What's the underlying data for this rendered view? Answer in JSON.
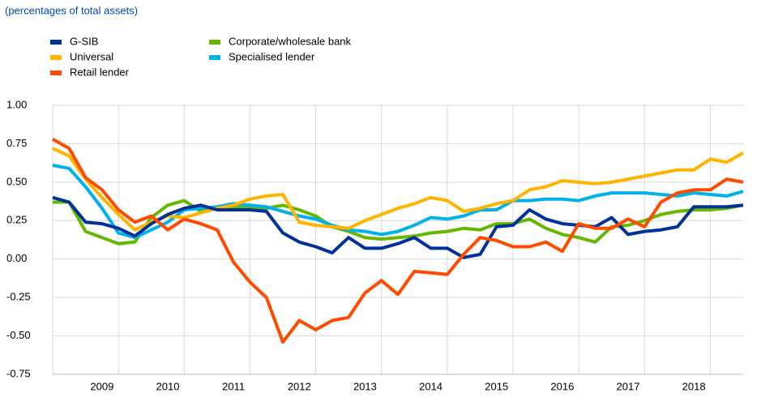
{
  "chart_data": {
    "type": "line",
    "subtitle": "(percentages of total assets)",
    "categories": [
      null,
      null,
      null,
      "2009",
      null,
      null,
      null,
      "2010",
      null,
      null,
      null,
      "2011",
      null,
      null,
      null,
      "2012",
      null,
      null,
      null,
      "2013",
      null,
      null,
      null,
      "2014",
      null,
      null,
      null,
      "2015",
      null,
      null,
      null,
      "2016",
      null,
      null,
      null,
      "2017",
      null,
      null,
      null,
      "2018",
      null,
      null,
      null
    ],
    "ylim": [
      -0.75,
      1.0
    ],
    "yticks": [
      {
        "value": -0.75,
        "label": "-0.75"
      },
      {
        "value": -0.5,
        "label": "-0.50"
      },
      {
        "value": -0.25,
        "label": "-0.25"
      },
      {
        "value": 0,
        "label": "0.00"
      },
      {
        "value": 0.25,
        "label": "0.25"
      },
      {
        "value": 0.5,
        "label": "0.50"
      },
      {
        "value": 0.75,
        "label": "0.75"
      },
      {
        "value": 1.0,
        "label": "1.00"
      }
    ],
    "grid": true,
    "series": [
      {
        "name": "G-SIB",
        "color": "#003299",
        "values": [
          0.4,
          0.37,
          0.24,
          0.23,
          0.2,
          0.15,
          0.23,
          0.29,
          0.33,
          0.35,
          0.32,
          0.32,
          0.32,
          0.31,
          0.17,
          0.11,
          0.08,
          0.04,
          0.14,
          0.07,
          0.07,
          0.1,
          0.14,
          0.07,
          0.07,
          0.01,
          0.03,
          0.21,
          0.22,
          0.32,
          0.26,
          0.23,
          0.22,
          0.21,
          0.27,
          0.16,
          0.18,
          0.19,
          0.21,
          0.34,
          0.34,
          0.34,
          0.35
        ]
      },
      {
        "name": "Universal",
        "color": "#ffb400",
        "values": [
          0.72,
          0.67,
          0.52,
          0.4,
          0.29,
          0.19,
          0.24,
          0.28,
          0.27,
          0.3,
          0.33,
          0.35,
          0.39,
          0.41,
          0.42,
          0.24,
          0.22,
          0.21,
          0.2,
          0.25,
          0.29,
          0.33,
          0.36,
          0.4,
          0.38,
          0.31,
          0.33,
          0.36,
          0.38,
          0.45,
          0.47,
          0.51,
          0.5,
          0.49,
          0.5,
          0.52,
          0.54,
          0.56,
          0.58,
          0.58,
          0.65,
          0.63,
          0.69
        ]
      },
      {
        "name": "Retail lender",
        "color": "#ff4b00",
        "values": [
          0.78,
          0.72,
          0.53,
          0.45,
          0.32,
          0.24,
          0.28,
          0.19,
          0.26,
          0.23,
          0.19,
          -0.02,
          -0.15,
          -0.25,
          -0.54,
          -0.4,
          -0.46,
          -0.4,
          -0.38,
          -0.22,
          -0.14,
          -0.23,
          -0.08,
          -0.09,
          -0.1,
          0.03,
          0.14,
          0.12,
          0.08,
          0.08,
          0.11,
          0.05,
          0.23,
          0.2,
          0.2,
          0.26,
          0.21,
          0.37,
          0.43,
          0.45,
          0.45,
          0.52,
          0.5
        ]
      },
      {
        "name": "Corporate/wholesale bank",
        "color": "#65b800",
        "values": [
          0.37,
          0.37,
          0.18,
          0.14,
          0.1,
          0.11,
          0.27,
          0.35,
          0.38,
          0.31,
          0.33,
          0.34,
          0.34,
          0.33,
          0.35,
          0.32,
          0.28,
          0.21,
          0.18,
          0.14,
          0.13,
          0.14,
          0.15,
          0.17,
          0.18,
          0.2,
          0.19,
          0.23,
          0.23,
          0.26,
          0.2,
          0.16,
          0.14,
          0.11,
          0.21,
          0.22,
          0.25,
          0.29,
          0.31,
          0.32,
          0.32,
          0.33,
          0.35
        ]
      },
      {
        "name": "Specialised lender",
        "color": "#00b1ea",
        "values": [
          0.61,
          0.59,
          0.47,
          0.33,
          0.17,
          0.14,
          0.19,
          0.24,
          0.32,
          0.33,
          0.34,
          0.36,
          0.35,
          0.34,
          0.31,
          0.28,
          0.26,
          0.22,
          0.19,
          0.18,
          0.16,
          0.18,
          0.22,
          0.27,
          0.26,
          0.28,
          0.32,
          0.32,
          0.38,
          0.38,
          0.39,
          0.39,
          0.38,
          0.41,
          0.43,
          0.43,
          0.43,
          0.42,
          0.41,
          0.43,
          0.42,
          0.41,
          0.44
        ]
      }
    ]
  }
}
